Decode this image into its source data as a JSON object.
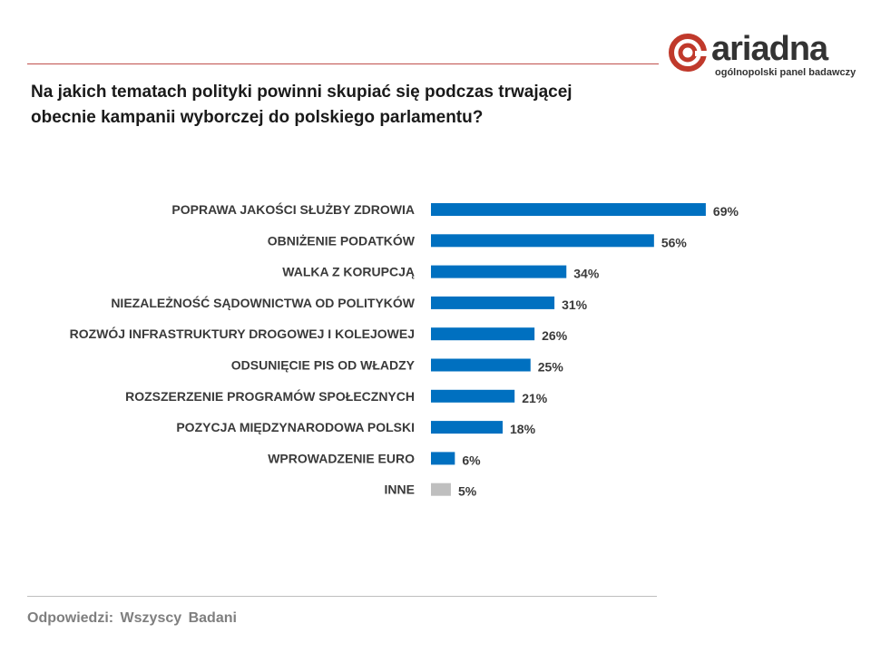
{
  "logo": {
    "wordmark": "ariadna",
    "tagline": "ogólnopolski panel badawczy",
    "brand_color": "#c0392b",
    "icon": "ariadna-spiral-icon"
  },
  "question": {
    "line1": "Na jakich tematach polityki powinni skupiać się podczas trwającej",
    "line2": "obecnie kampanii wyborczej do polskiego parlamentu?"
  },
  "footer": {
    "text": "Odpowiedzi: Wszyscy Badani"
  },
  "chart_data": {
    "type": "bar",
    "orientation": "horizontal",
    "categories": [
      "POPRAWA JAKOŚCI SŁUŻBY ZDROWIA",
      "OBNIŻENIE PODATKÓW",
      "WALKA Z KORUPCJĄ",
      "NIEZALEŻNOŚĆ SĄDOWNICTWA OD POLITYKÓW",
      "ROZWÓJ INFRASTRUKTURY DROGOWEJ I KOLEJOWEJ",
      "ODSUNIĘCIE PIS OD WŁADZY",
      "ROZSZERZENIE PROGRAMÓW SPOŁECZNYCH",
      "POZYCJA MIĘDZYNARODOWA POLSKI",
      "WPROWADZENIE EURO",
      "INNE"
    ],
    "values": [
      69,
      56,
      34,
      31,
      26,
      25,
      21,
      18,
      6,
      5
    ],
    "value_suffix": "%",
    "colors": [
      "#0070c0",
      "#0070c0",
      "#0070c0",
      "#0070c0",
      "#0070c0",
      "#0070c0",
      "#0070c0",
      "#0070c0",
      "#0070c0",
      "#bfbfbf"
    ],
    "xlim": [
      0,
      100
    ],
    "grid": false,
    "legend": "none"
  }
}
